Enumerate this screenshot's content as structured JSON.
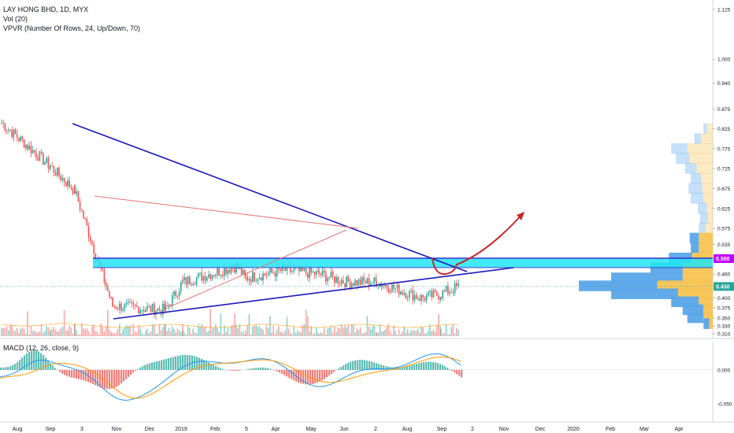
{
  "header": {
    "symbol_line": "LAY HONG BHD, 1D, MYX",
    "vol_line": "Vol (20)",
    "vpvr_line": "VPVR (Number Of Rows, 24, Up/Down, 70)",
    "macd_line": "MACD (12, 26, close, 9)"
  },
  "colors": {
    "up": "#26a69a",
    "down": "#ef5350",
    "trend_blue": "#1a19b8",
    "trend_red": "#e57373",
    "zone_fill": "#22e5f2",
    "zone_border": "#3a2fd0",
    "arrow": "#c62828",
    "vp_up": "#5aa6ea",
    "vp_down": "#f7c453",
    "macd_line": "#2196f3",
    "signal_line": "#ff9800",
    "price_badge": "#26a69a",
    "level_badge": "#c000ff"
  },
  "price_axis": [
    "1.125",
    "1.000",
    "0.940",
    "0.875",
    "0.825",
    "0.775",
    "0.725",
    "0.675",
    "0.625",
    "0.575",
    "0.535",
    "0.460",
    "0.400",
    "0.375",
    "0.350",
    "0.330",
    "0.310"
  ],
  "price_badges": {
    "level": "0.500",
    "last": "0.430"
  },
  "macd_axis": [
    "0.000",
    "-0.050"
  ],
  "time_axis": [
    "Aug",
    "Sep",
    "3",
    "Nov",
    "Dec",
    "2019",
    "Feb",
    "5",
    "Apr",
    "May",
    "Jun",
    "2",
    "Aug",
    "Sep",
    "2",
    "Nov",
    "Dec",
    "2020",
    "Feb",
    "Mar",
    "Apr"
  ],
  "chart_data": {
    "type": "candlestick",
    "ticker": "LAY HONG BHD",
    "interval": "1D",
    "exchange": "MYX",
    "ylim": [
      0.31,
      1.125
    ],
    "price_points": [
      {
        "x": "Aug",
        "y": 0.84
      },
      {
        "x": "Sep",
        "y": 0.73
      },
      {
        "x": "3",
        "y": 0.67
      },
      {
        "x": "Nov",
        "y": 0.38
      },
      {
        "x": "Dec",
        "y": 0.37
      },
      {
        "x": "2019",
        "y": 0.44
      },
      {
        "x": "Feb",
        "y": 0.48
      },
      {
        "x": "5",
        "y": 0.45
      },
      {
        "x": "Apr",
        "y": 0.47
      },
      {
        "x": "May",
        "y": 0.46
      },
      {
        "x": "Jun",
        "y": 0.44
      },
      {
        "x": "2",
        "y": 0.44
      },
      {
        "x": "Aug",
        "y": 0.4
      },
      {
        "x": "Sep",
        "y": 0.41
      },
      {
        "x": "Sep",
        "y": 0.43
      }
    ],
    "last_price": 0.43,
    "resistance_level": 0.5,
    "volume_profile": {
      "levels": [
        0.825,
        0.8,
        0.775,
        0.75,
        0.725,
        0.7,
        0.675,
        0.65,
        0.625,
        0.6,
        0.575,
        0.55,
        0.525,
        0.5,
        0.475,
        0.45,
        0.43,
        0.41,
        0.39,
        0.37,
        0.35,
        0.335
      ],
      "up": [
        3,
        6,
        14,
        12,
        10,
        9,
        12,
        11,
        8,
        7,
        6,
        8,
        7,
        20,
        28,
        62,
        68,
        58,
        24,
        18,
        14,
        5
      ],
      "down": [
        5,
        10,
        22,
        20,
        14,
        10,
        9,
        8,
        5,
        4,
        6,
        12,
        12,
        18,
        26,
        26,
        48,
        30,
        12,
        8,
        8,
        3
      ]
    },
    "macd": {
      "ylim": [
        -0.07,
        0.03
      ]
    }
  }
}
